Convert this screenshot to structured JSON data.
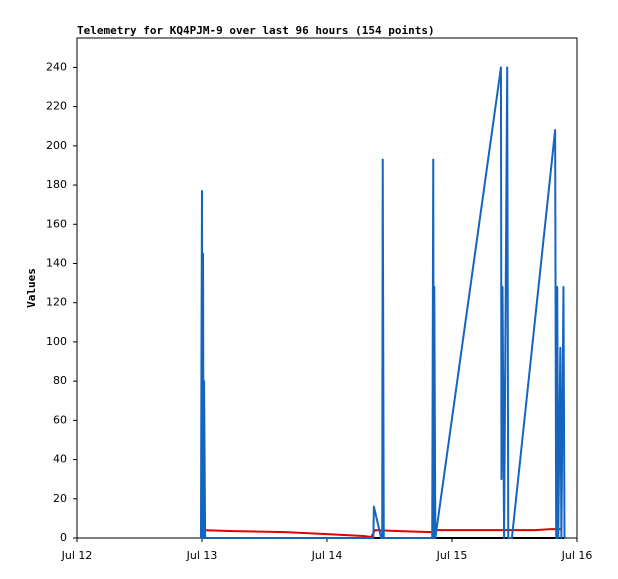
{
  "chart_data": {
    "type": "line",
    "title": "Telemetry for KQ4PJM-9 over last 96 hours (154 points)",
    "y_label": "Values",
    "xlim": [
      0,
      96
    ],
    "xticks": [
      {
        "value": 0,
        "label": "Jul 12"
      },
      {
        "value": 24,
        "label": "Jul 13"
      },
      {
        "value": 48,
        "label": "Jul 14"
      },
      {
        "value": 72,
        "label": "Jul 15"
      },
      {
        "value": 96,
        "label": "Jul 16"
      }
    ],
    "ylim": [
      0,
      255
    ],
    "yticks": [
      0,
      20,
      40,
      60,
      80,
      100,
      120,
      140,
      160,
      180,
      200,
      220,
      240
    ],
    "grid": false,
    "series": [
      {
        "color": "#000000",
        "x": [
          24,
          93.6
        ],
        "values": [
          0,
          0
        ]
      },
      {
        "color": "#e00000",
        "x": [
          24.0,
          30,
          40,
          48,
          55,
          56.5,
          57.2,
          62,
          68.2,
          69,
          80,
          88,
          91,
          93
        ],
        "values": [
          4,
          3.5,
          3,
          2,
          1,
          0.5,
          4,
          3.5,
          3,
          4,
          4,
          4,
          4.5,
          4.5
        ]
      },
      {
        "color": "#1565c0",
        "x": [
          23.8,
          23.9,
          24.0,
          24.1,
          24.2,
          24.3,
          24.4,
          24.6,
          56.9,
          57.0,
          58.4,
          58.6,
          58.7,
          58.9,
          68.2,
          68.3,
          68.4,
          68.5,
          68.6,
          68.8,
          81.4,
          81.5,
          81.7,
          82.0,
          82.6,
          82.8,
          83.5,
          91.8,
          92.0,
          92.2,
          92.4,
          92.8,
          93.0,
          93.4,
          93.6
        ],
        "values": [
          0,
          97,
          177,
          0,
          145,
          0,
          80,
          0,
          0,
          16,
          0,
          0,
          193,
          0,
          0,
          97,
          193,
          0,
          128,
          0,
          240,
          30,
          128,
          0,
          240,
          0,
          0,
          208,
          0,
          128,
          0,
          97,
          0,
          128,
          0
        ]
      }
    ]
  }
}
